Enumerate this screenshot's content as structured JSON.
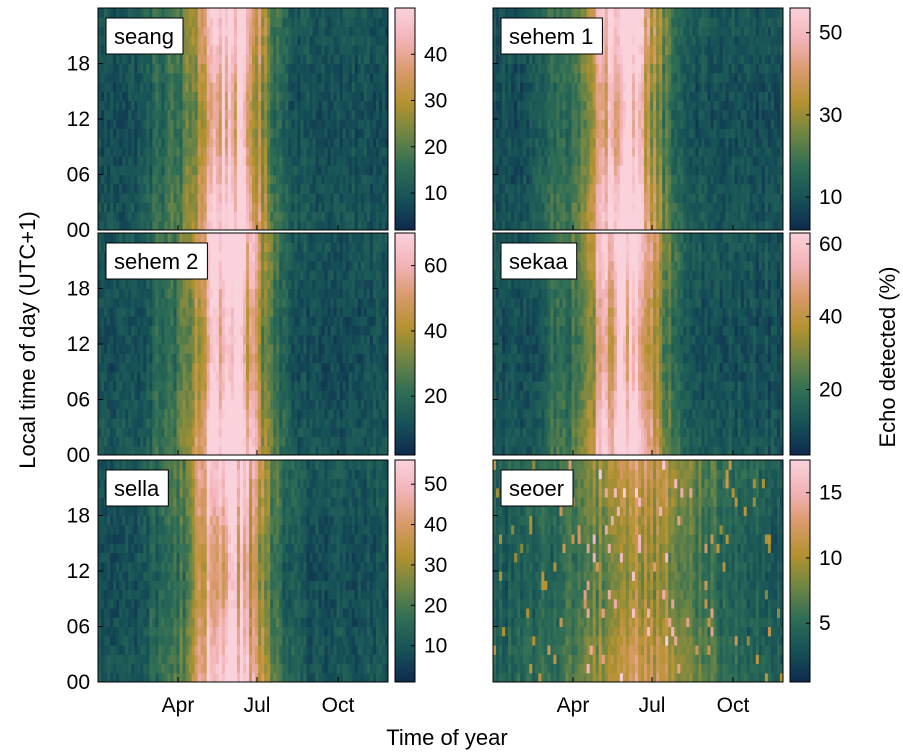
{
  "figure": {
    "xlabel": "Time of year",
    "ylabel": "Local time of day (UTC+1)",
    "colorbar_label": "Echo detected (%)"
  },
  "colormap": {
    "name": "batlow-like",
    "stops": [
      "#0f2a4f",
      "#165257",
      "#2f6e56",
      "#6e8544",
      "#b3922f",
      "#d99a6a",
      "#f2b3b8",
      "#fad2dc"
    ]
  },
  "chart_data": [
    {
      "type": "heatmap",
      "panel": "seang",
      "x_ticks": [
        "Apr",
        "Jul",
        "Oct"
      ],
      "y_ticks": [
        "00",
        "06",
        "12",
        "18"
      ],
      "colorbar": {
        "ticks": [
          10,
          20,
          30,
          40
        ],
        "range": [
          2,
          50
        ]
      },
      "peak_months": "Apr–Jul"
    },
    {
      "type": "heatmap",
      "panel": "sehem 1",
      "x_ticks": [
        "Apr",
        "Jul",
        "Oct"
      ],
      "y_ticks": [
        "00",
        "06",
        "12",
        "18"
      ],
      "colorbar": {
        "ticks": [
          10,
          30,
          50
        ],
        "range": [
          2,
          56
        ]
      },
      "peak_months": "Apr–Jul"
    },
    {
      "type": "heatmap",
      "panel": "sehem 2",
      "x_ticks": [
        "Apr",
        "Jul",
        "Oct"
      ],
      "y_ticks": [
        "00",
        "06",
        "12",
        "18"
      ],
      "colorbar": {
        "ticks": [
          20,
          40,
          60
        ],
        "range": [
          2,
          70
        ]
      },
      "peak_months": "Apr–Jul"
    },
    {
      "type": "heatmap",
      "panel": "sekaa",
      "x_ticks": [
        "Apr",
        "Jul",
        "Oct"
      ],
      "y_ticks": [
        "00",
        "06",
        "12",
        "18"
      ],
      "colorbar": {
        "ticks": [
          20,
          40,
          60
        ],
        "range": [
          2,
          63
        ]
      },
      "peak_months": "Apr–Jul"
    },
    {
      "type": "heatmap",
      "panel": "sella",
      "x_ticks": [
        "Apr",
        "Jul",
        "Oct"
      ],
      "y_ticks": [
        "00",
        "06",
        "12",
        "18"
      ],
      "colorbar": {
        "ticks": [
          10,
          20,
          30,
          40,
          50
        ],
        "range": [
          1,
          56
        ]
      },
      "peak_months": "Apr–Jul"
    },
    {
      "type": "heatmap",
      "panel": "seoer",
      "x_ticks": [
        "Apr",
        "Jul",
        "Oct"
      ],
      "y_ticks": [
        "00",
        "06",
        "12",
        "18"
      ],
      "colorbar": {
        "ticks": [
          5,
          10,
          15
        ],
        "range": [
          0.5,
          17.5
        ]
      },
      "peak_months": "Apr–Jul"
    }
  ]
}
